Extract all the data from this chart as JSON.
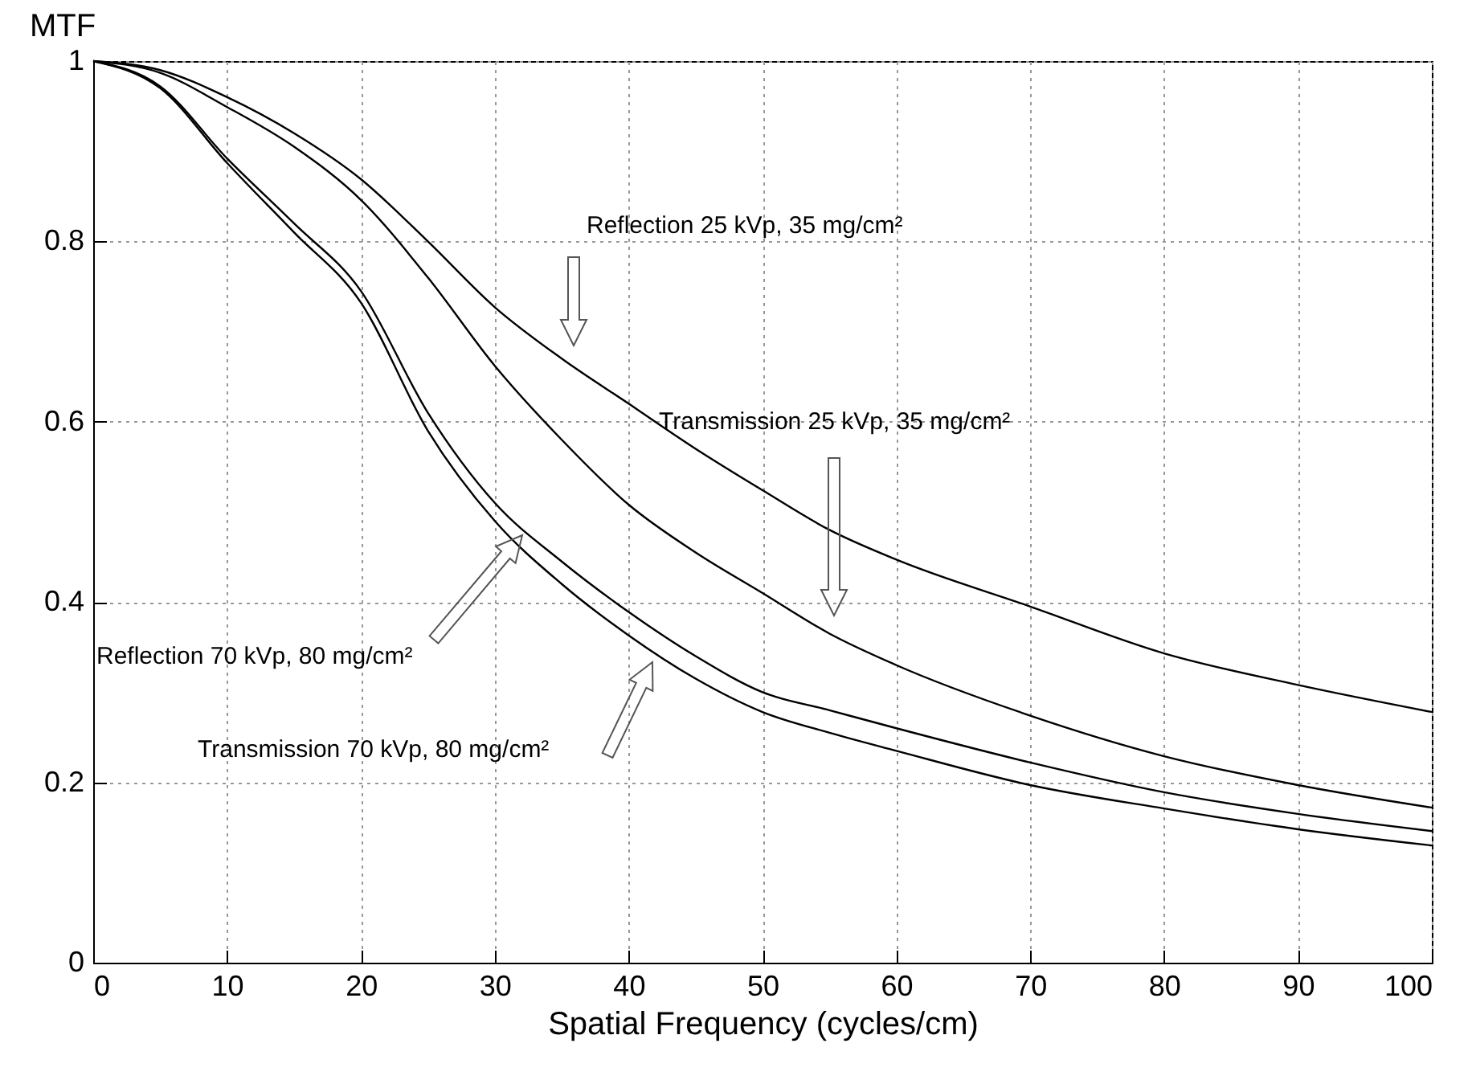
{
  "chart_data": {
    "type": "line",
    "xlabel": "Spatial Frequency (cycles/cm)",
    "ylabel": "MTF",
    "x": [
      0,
      5,
      10,
      15,
      20,
      25,
      30,
      35,
      40,
      45,
      50,
      55,
      60,
      70,
      80,
      90,
      100
    ],
    "series": [
      {
        "color": "#000000",
        "values": [
          1,
          0.99,
          0.96,
          0.92,
          0.869,
          0.8,
          0.727,
          0.67,
          0.62,
          0.57,
          0.524,
          0.48,
          0.447,
          0.395,
          0.343,
          0.308,
          0.278
        ]
      },
      {
        "color": "#000000",
        "values": [
          1,
          0.987,
          0.949,
          0.905,
          0.846,
          0.76,
          0.662,
          0.58,
          0.508,
          0.455,
          0.41,
          0.365,
          0.33,
          0.274,
          0.229,
          0.197,
          0.172
        ]
      },
      {
        "color": "#000000",
        "values": [
          1,
          0.972,
          0.892,
          0.82,
          0.745,
          0.61,
          0.51,
          0.445,
          0.389,
          0.34,
          0.3,
          0.28,
          0.26,
          0.222,
          0.189,
          0.165,
          0.146
        ]
      },
      {
        "color": "#000000",
        "values": [
          1,
          0.97,
          0.887,
          0.81,
          0.732,
          0.59,
          0.49,
          0.42,
          0.363,
          0.315,
          0.278,
          0.255,
          0.235,
          0.197,
          0.171,
          0.148,
          0.13
        ]
      }
    ],
    "annotations": [
      "Reflection 25 kVp, 35 mg/cm²",
      "Transmission 25 kVp, 35 mg/cm²",
      "Reflection 70 kVp, 80 mg/cm²",
      "Transmission 70 kVp, 80 mg/cm²"
    ],
    "xlim": [
      0,
      100
    ],
    "xticks": [
      0,
      10,
      20,
      30,
      40,
      50,
      60,
      70,
      80,
      90,
      100
    ],
    "ylim": [
      0,
      1
    ],
    "yticks": [
      0,
      0.2,
      0.4,
      0.6,
      0.8,
      1
    ],
    "grid": true,
    "marker": "none",
    "line_style": "solid"
  }
}
